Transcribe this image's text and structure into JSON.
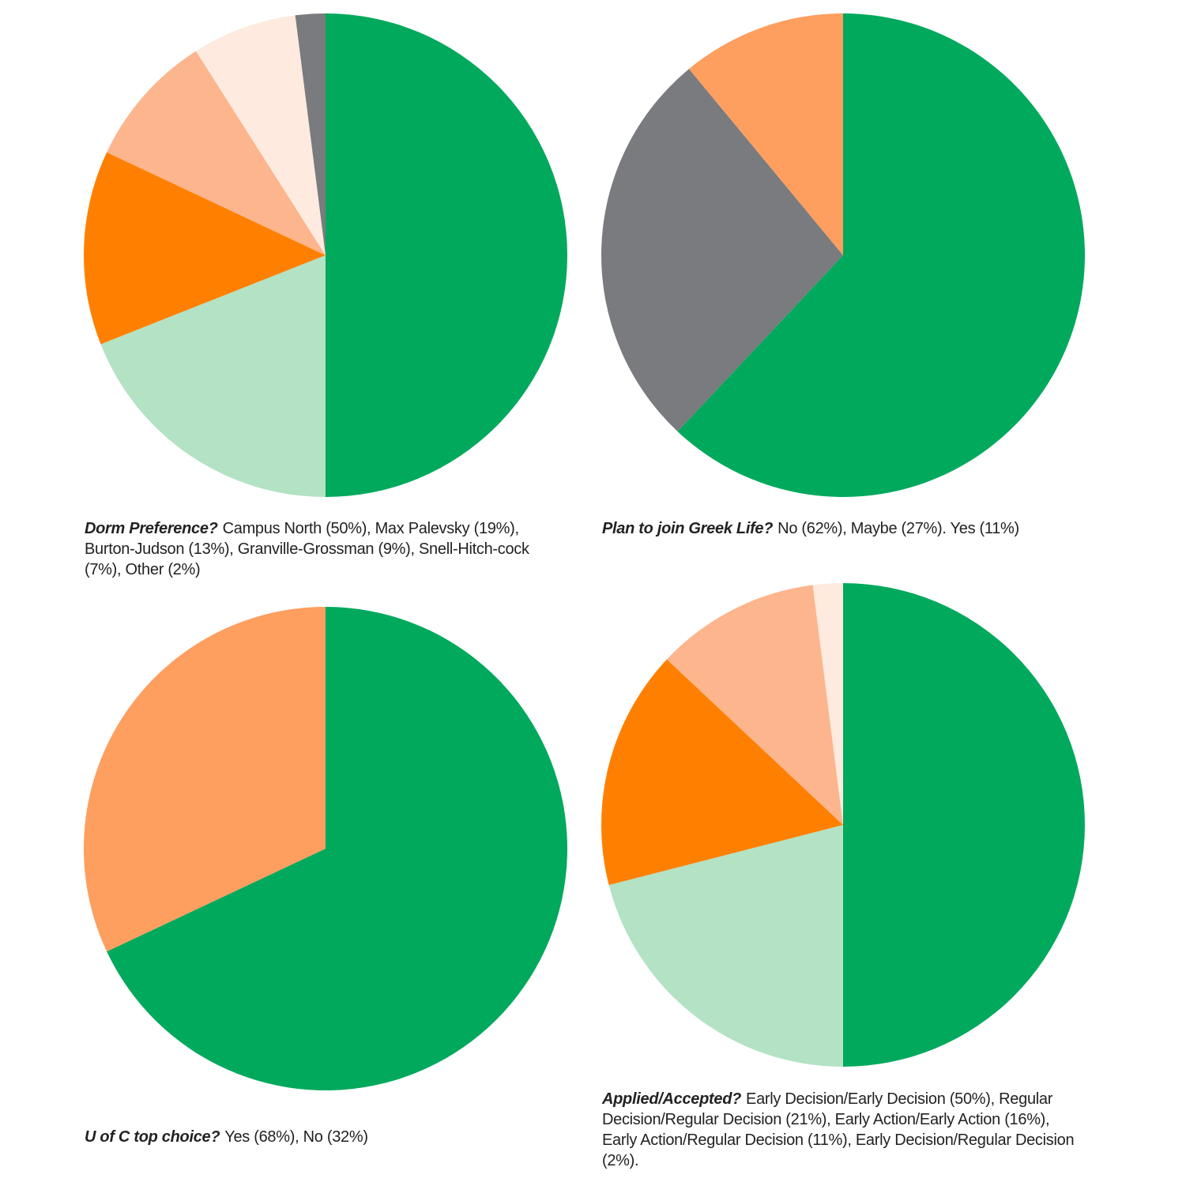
{
  "chart_data": [
    {
      "type": "pie",
      "id": "dorm",
      "question": "Dorm Preference?",
      "answer_text": "Campus North (50%), Max Palevsky (19%), Burton-Judson (13%), Granville-Grossman (9%), Snell-Hitch-cock (7%), Other (2%)",
      "slices": [
        {
          "label": "Campus North",
          "value": 50,
          "color": "#00a95c"
        },
        {
          "label": "Max Palevsky",
          "value": 19,
          "color": "#b3e2c4"
        },
        {
          "label": "Burton-Judson",
          "value": 13,
          "color": "#ff8000"
        },
        {
          "label": "Granville-Grossman",
          "value": 9,
          "color": "#fdb58d"
        },
        {
          "label": "Snell-Hitchcock",
          "value": 7,
          "color": "#feeade"
        },
        {
          "label": "Other",
          "value": 2,
          "color": "#7a7b7e"
        }
      ]
    },
    {
      "type": "pie",
      "id": "greek",
      "question": "Plan to join Greek Life?",
      "answer_text": "No (62%), Maybe (27%). Yes (11%)",
      "slices": [
        {
          "label": "No",
          "value": 62,
          "color": "#00a95c"
        },
        {
          "label": "Maybe",
          "value": 27,
          "color": "#7a7b7e"
        },
        {
          "label": "Yes",
          "value": 11,
          "color": "#fe9e5f"
        }
      ]
    },
    {
      "type": "pie",
      "id": "top",
      "question": "U of C top choice?",
      "answer_text": "Yes (68%), No (32%)",
      "slices": [
        {
          "label": "Yes",
          "value": 68,
          "color": "#00a95c"
        },
        {
          "label": "No",
          "value": 32,
          "color": "#fe9e5f"
        }
      ]
    },
    {
      "type": "pie",
      "id": "applied",
      "question": "Applied/Accepted?",
      "answer_text": "Early Decision/Early Decision (50%), Regular Decision/Regular Decision (21%), Early Action/Early Action (16%), Early Action/Regular Decision (11%), Early Decision/Regular Decision (2%).",
      "slices": [
        {
          "label": "Early Decision/Early Decision",
          "value": 50,
          "color": "#00a95c"
        },
        {
          "label": "Regular Decision/Regular Decision",
          "value": 21,
          "color": "#b3e2c4"
        },
        {
          "label": "Early Action/Early Action",
          "value": 16,
          "color": "#ff8000"
        },
        {
          "label": "Early Action/Regular Decision",
          "value": 11,
          "color": "#fdb58d"
        },
        {
          "label": "Early Decision/Regular Decision",
          "value": 2,
          "color": "#feeade"
        }
      ]
    }
  ]
}
